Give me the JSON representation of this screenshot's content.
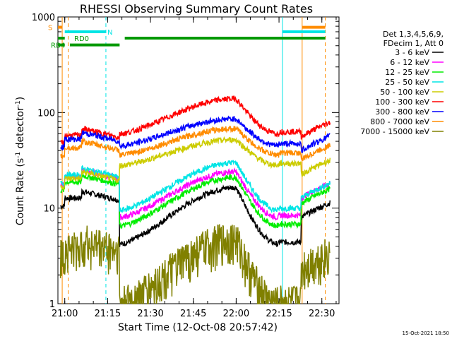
{
  "chart_data": {
    "type": "line",
    "title": "RHESSI Observing Summary Count Rates",
    "xlabel": "Start Time (12-Oct-08 20:57:42)",
    "ylabel_main": "Count Rate (s",
    "ylabel_sup1": "-1",
    "ylabel_mid": " detector",
    "ylabel_sup2": "-1",
    "ylabel_end": ")",
    "y_scale": "log",
    "ylim": [
      1,
      1000
    ],
    "xlim_minutes": [
      20.96,
      22.6
    ],
    "x_tick_labels": [
      "21:00",
      "21:15",
      "21:30",
      "21:45",
      "22:00",
      "22:15",
      "22:30"
    ],
    "x_tick_values_hours": [
      21.0,
      21.25,
      21.5,
      21.75,
      22.0,
      22.25,
      22.5
    ],
    "y_tick_labels": [
      "1",
      "10",
      "100",
      "1000"
    ],
    "y_tick_values": [
      1,
      10,
      100,
      1000
    ],
    "legend_placement": "right",
    "legend_header_1": "Det 1,3,4,5,6,9,",
    "legend_header_2": "FDecim 1, Att 0",
    "timestamp": "15-Oct-2021 18:50",
    "flags": [
      {
        "label": "S",
        "color": "#ff8c00",
        "y": 780
      },
      {
        "label": "RD0",
        "color": "#009900",
        "y": 600
      },
      {
        "label": "RB4",
        "color": "#009900",
        "y": 510
      },
      {
        "label": "N",
        "color": "#00e5e5",
        "y": 700
      }
    ],
    "series": [
      {
        "name": "3 - 6 keV",
        "color": "#000000",
        "start": 15,
        "dip": 4.2,
        "peak": 16.5,
        "end": 10
      },
      {
        "name": "6 - 12 keV",
        "color": "#ff00ff",
        "start": 25,
        "dip": 8.0,
        "peak": 24,
        "end": 16
      },
      {
        "name": "12 - 25 keV",
        "color": "#00ee00",
        "start": 22,
        "dip": 6.5,
        "peak": 21,
        "end": 14
      },
      {
        "name": "25 - 50 keV",
        "color": "#00e5e5",
        "start": 26,
        "dip": 9.5,
        "peak": 30,
        "end": 16
      },
      {
        "name": "50 - 100 keV",
        "color": "#cccc00",
        "start": 24,
        "dip": 28,
        "peak": 52,
        "end": 28
      },
      {
        "name": "100 - 300 keV",
        "color": "#ff0000",
        "start": 68,
        "dip": 60,
        "peak": 140,
        "end": 70
      },
      {
        "name": "300 - 800 keV",
        "color": "#0000ff",
        "start": 62,
        "dip": 45,
        "peak": 86,
        "end": 50
      },
      {
        "name": "800 - 7000 keV",
        "color": "#ff8c00",
        "start": 50,
        "dip": 36,
        "peak": 68,
        "end": 40
      },
      {
        "name": "7000 - 15000 keV",
        "color": "#808000",
        "start": 4.5,
        "dip": 1,
        "peak": 4.8,
        "end": 3
      }
    ]
  }
}
